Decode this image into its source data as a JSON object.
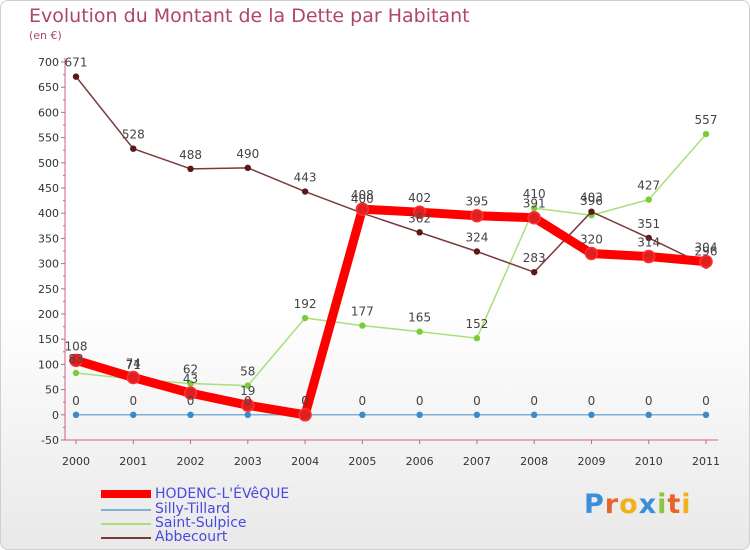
{
  "header": {
    "title": "Evolution du Montant de la Dette par Habitant",
    "unit": "(en €)"
  },
  "brand": {
    "letters": [
      "P",
      "r",
      "o",
      "x",
      "i",
      "t",
      "i"
    ]
  },
  "chart_data": {
    "type": "line",
    "title": "Evolution du Montant de la Dette par Habitant",
    "subtitle": "(en €)",
    "x": [
      "2000",
      "2001",
      "2002",
      "2003",
      "2004",
      "2005",
      "2006",
      "2007",
      "2008",
      "2009",
      "2010",
      "2011"
    ],
    "ylim": [
      -50,
      700
    ],
    "yticks": [
      -50,
      0,
      50,
      100,
      150,
      200,
      250,
      300,
      350,
      400,
      450,
      500,
      550,
      600,
      650,
      700
    ],
    "grid": false,
    "legend_position": "bottom-left",
    "series": [
      {
        "name": "HODENC-L'ÉVêQUE",
        "color": "#ff0000",
        "marker": "#e02020",
        "values": [
          108,
          74,
          43,
          19,
          0,
          408,
          402,
          395,
          391,
          320,
          314,
          304
        ]
      },
      {
        "name": "Silly-Tillard",
        "color": "#7fb0d8",
        "marker": "#3a8bc8",
        "values": [
          0,
          0,
          0,
          0,
          0,
          0,
          0,
          0,
          0,
          0,
          0,
          0
        ]
      },
      {
        "name": "Saint-Sulpice",
        "color": "#a8e07a",
        "marker": "#7acc3a",
        "values": [
          83,
          71,
          62,
          58,
          192,
          177,
          165,
          152,
          410,
          396,
          427,
          557
        ]
      },
      {
        "name": "Abbecourt",
        "color": "#7a3b3b",
        "marker": "#5a1818",
        "values": [
          671,
          528,
          488,
          490,
          443,
          400,
          362,
          324,
          283,
          403,
          351,
          296
        ]
      }
    ],
    "data_labels": [
      {
        "series": 0,
        "labels": [
          "108",
          "74",
          "43",
          "19",
          "0",
          "408",
          "402",
          "395",
          "391",
          "320",
          "314",
          "304"
        ]
      },
      {
        "series": 1,
        "labels": [
          "0",
          "0",
          "0",
          "0",
          "0",
          "0",
          "0",
          "0",
          "0",
          "0",
          "0",
          "0"
        ]
      },
      {
        "series": 2,
        "labels": [
          "83",
          "71",
          "62",
          "58",
          "192",
          "177",
          "165",
          "152",
          "410",
          "396",
          "427",
          "557"
        ]
      },
      {
        "series": 3,
        "labels": [
          "671",
          "528",
          "488",
          "490",
          "443",
          "400",
          "362",
          "324",
          "283",
          "403",
          "351",
          "296"
        ]
      }
    ]
  }
}
